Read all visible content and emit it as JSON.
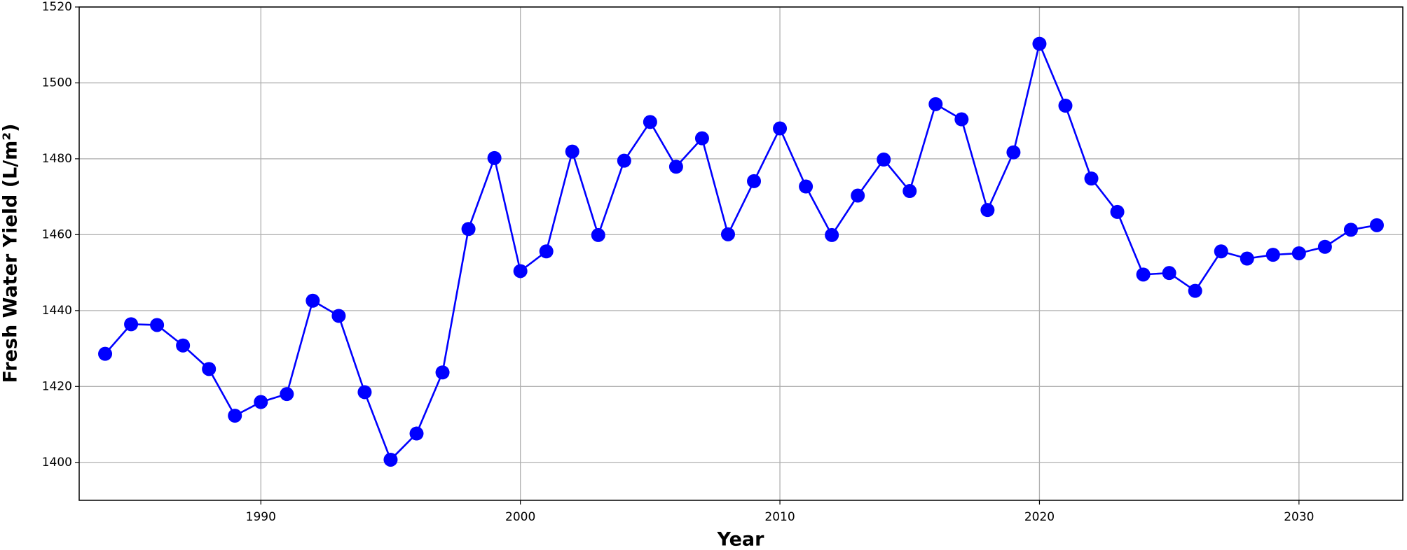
{
  "chart_data": {
    "type": "line",
    "x_label": "Year",
    "y_label": "Fresh Water Yield (L/m²)",
    "x": [
      1984,
      1985,
      1986,
      1987,
      1988,
      1989,
      1990,
      1991,
      1992,
      1993,
      1994,
      1995,
      1996,
      1997,
      1998,
      1999,
      2000,
      2001,
      2002,
      2003,
      2004,
      2005,
      2006,
      2007,
      2008,
      2009,
      2010,
      2011,
      2012,
      2013,
      2014,
      2015,
      2016,
      2017,
      2018,
      2019,
      2020,
      2021,
      2022,
      2023,
      2024,
      2025,
      2026,
      2027,
      2028,
      2029,
      2030,
      2031,
      2032,
      2033
    ],
    "values": [
      1428.6,
      1436.4,
      1436.2,
      1430.8,
      1424.6,
      1412.3,
      1415.9,
      1418.0,
      1442.6,
      1438.6,
      1418.5,
      1400.7,
      1407.6,
      1423.7,
      1461.5,
      1480.2,
      1450.4,
      1455.6,
      1481.9,
      1459.9,
      1479.5,
      1489.7,
      1477.9,
      1485.4,
      1460.1,
      1474.1,
      1488.0,
      1472.7,
      1459.9,
      1470.3,
      1479.8,
      1471.5,
      1494.4,
      1490.4,
      1466.5,
      1481.7,
      1510.3,
      1494.0,
      1474.8,
      1466.0,
      1449.5,
      1449.9,
      1445.2,
      1455.6,
      1453.7,
      1454.7,
      1455.1,
      1456.8,
      1461.3,
      1462.5
    ],
    "color": "#0000ff",
    "xlim": [
      1983,
      2034
    ],
    "xticks": [
      1990,
      2000,
      2010,
      2020,
      2030
    ],
    "ylim": [
      1390,
      1520
    ],
    "yticks": [
      1400,
      1420,
      1440,
      1460,
      1480,
      1500,
      1520
    ],
    "grid": true
  }
}
